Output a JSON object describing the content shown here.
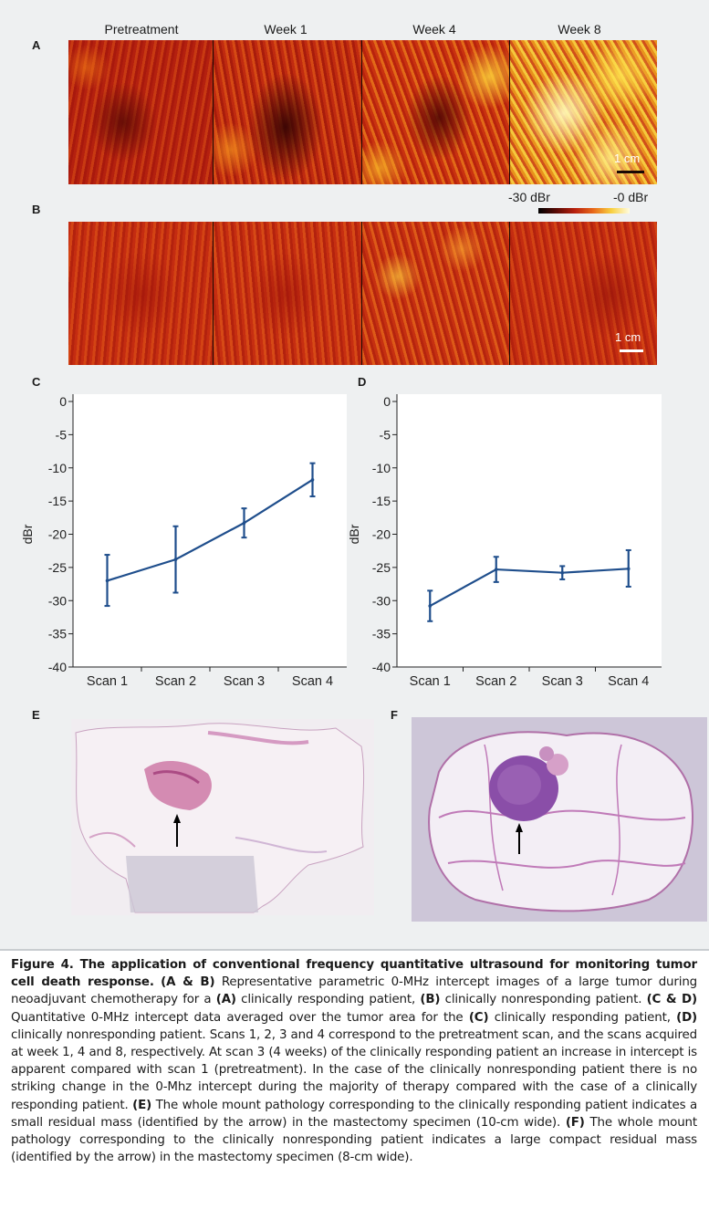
{
  "panels": {
    "a": "A",
    "b": "B",
    "c": "C",
    "d": "D",
    "e": "E",
    "f": "F"
  },
  "columns": [
    "Pretreatment",
    "Week 1",
    "Week 4",
    "Week 8"
  ],
  "scalebar": {
    "label": "1 cm"
  },
  "colorbar": {
    "low": "-30 dBr",
    "high": "-0 dBr"
  },
  "chart_data": [
    {
      "type": "line",
      "panel": "C",
      "ylabel": "dBr",
      "xlabel": "",
      "ylim": [
        -40,
        0
      ],
      "yticks": [
        "0",
        "-5",
        "-10",
        "-15",
        "-20",
        "-25",
        "-30",
        "-35",
        "-40"
      ],
      "categories": [
        "Scan 1",
        "Scan 2",
        "Scan 3",
        "Scan 4"
      ],
      "series": [
        {
          "values": [
            -27,
            -23.8,
            -18.3,
            -11.8
          ],
          "error_low": [
            -30.8,
            -28.8,
            -20.5,
            -14.3
          ],
          "error_high": [
            -23.1,
            -18.8,
            -16.1,
            -9.3
          ]
        }
      ],
      "color": "#1f4e8c"
    },
    {
      "type": "line",
      "panel": "D",
      "ylabel": "dBr",
      "xlabel": "",
      "ylim": [
        -40,
        0
      ],
      "yticks": [
        "0",
        "-5",
        "-10",
        "-15",
        "-20",
        "-25",
        "-30",
        "-35",
        "-40"
      ],
      "categories": [
        "Scan 1",
        "Scan 2",
        "Scan 3",
        "Scan 4"
      ],
      "series": [
        {
          "values": [
            -30.8,
            -25.3,
            -25.8,
            -25.2
          ],
          "error_low": [
            -33.1,
            -27.2,
            -26.8,
            -27.9
          ],
          "error_high": [
            -28.5,
            -23.4,
            -24.8,
            -22.4
          ]
        }
      ],
      "color": "#1f4e8c"
    }
  ],
  "caption": {
    "title": "Figure 4. The application of conventional frequency quantitative ultrasound for monitoring tumor cell death response.",
    "ab_ref": "(A & B)",
    "t1": " Representative parametric 0-MHz intercept images of a large tumor during neoadjuvant chemotherapy for a ",
    "a_ref": "(A)",
    "t2": " clinically responding patient, ",
    "b_ref": "(B)",
    "t3": " clinically nonresponding patient. ",
    "cd_ref": "(C & D)",
    "t4": " Quantitative 0-MHz intercept data averaged over the tumor area for the ",
    "c_ref": "(C)",
    "t5": " clinically responding patient, ",
    "d_ref": "(D)",
    "t6": " clinically nonresponding patient. Scans 1, 2, 3 and 4 correspond to the pretreatment scan, and the scans acquired at week 1, 4 and 8, respectively. At scan 3 (4 weeks) of the clinically responding patient an increase in intercept is apparent compared with scan 1 (pretreatment). In the case of the clinically nonresponding patient there is no striking change in the 0-Mhz intercept during the majority of therapy compared with the case of a clinically responding patient. ",
    "e_ref": "(E)",
    "t7": " The whole mount pathology corresponding to the clinically responding patient indicates a small residual mass (identified by the arrow) in the mastectomy specimen (10-cm wide). ",
    "f_ref": "(F)",
    "t8": " The whole mount pathology corresponding to the clinically nonresponding patient indicates a large compact residual mass (identified by the arrow) in the mastectomy specimen (8-cm wide)."
  }
}
